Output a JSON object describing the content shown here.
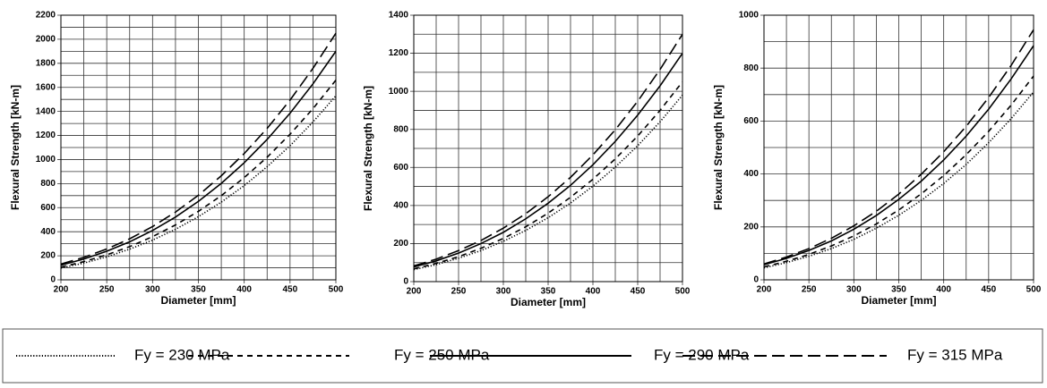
{
  "chart_data": [
    {
      "type": "line",
      "xlabel": "Diameter [mm]",
      "ylabel": "Flexural Strength [kN-m]",
      "x": [
        200,
        225,
        250,
        275,
        300,
        325,
        350,
        375,
        400,
        425,
        450,
        475,
        500
      ],
      "xlim": [
        200,
        500
      ],
      "xticks": [
        200,
        250,
        300,
        350,
        400,
        450,
        500
      ],
      "xminor_ticks": [
        225,
        275,
        325,
        375,
        425,
        475
      ],
      "ylim": [
        0,
        2200
      ],
      "yticks": [
        0,
        200,
        400,
        600,
        800,
        1000,
        1200,
        1400,
        1600,
        1800,
        2000,
        2200
      ],
      "yminor_ticks": [
        100,
        300,
        500,
        700,
        900,
        1100,
        1300,
        1500,
        1700,
        1900,
        2100
      ],
      "grid": true,
      "series": [
        {
          "name": "Fy = 230 MPa",
          "color": "#000",
          "dash": "dotted",
          "values": [
            98,
            139,
            191,
            255,
            330,
            420,
            525,
            646,
            783,
            940,
            1115,
            1312,
            1530
          ]
        },
        {
          "name": "Fy = 250 MPa",
          "color": "#000",
          "dash": "dashed",
          "values": [
            106,
            151,
            208,
            276,
            359,
            456,
            569,
            700,
            850,
            1019,
            1210,
            1423,
            1660
          ]
        },
        {
          "name": "Fy = 290 MPa",
          "color": "#000",
          "dash": "solid",
          "values": [
            122,
            173,
            238,
            316,
            410,
            522,
            652,
            802,
            973,
            1167,
            1385,
            1629,
            1900
          ]
        },
        {
          "name": "Fy = 315 MPa",
          "color": "#000",
          "dash": "longdash",
          "values": [
            131,
            187,
            256,
            341,
            443,
            563,
            703,
            865,
            1050,
            1259,
            1494,
            1758,
            2050
          ]
        }
      ]
    },
    {
      "type": "line",
      "xlabel": "Diameter [mm]",
      "ylabel": "Flexural Strength [kN-m]",
      "x": [
        200,
        225,
        250,
        275,
        300,
        325,
        350,
        375,
        400,
        425,
        450,
        475,
        500
      ],
      "xlim": [
        200,
        500
      ],
      "xticks": [
        200,
        250,
        300,
        350,
        400,
        450,
        500
      ],
      "xminor_ticks": [
        225,
        275,
        325,
        375,
        425,
        475
      ],
      "ylim": [
        0,
        1400
      ],
      "yticks": [
        0,
        200,
        400,
        600,
        800,
        1000,
        1200,
        1400
      ],
      "yminor_ticks": [
        100,
        300,
        500,
        700,
        900,
        1100,
        1300
      ],
      "grid": true,
      "series": [
        {
          "name": "Fy = 230 MPa",
          "color": "#000",
          "dash": "dotted",
          "values": [
            63,
            89,
            123,
            163,
            212,
            269,
            336,
            413,
            502,
            602,
            714,
            840,
            980
          ]
        },
        {
          "name": "Fy = 250 MPa",
          "color": "#000",
          "dash": "dashed",
          "values": [
            67,
            96,
            131,
            175,
            227,
            288,
            360,
            443,
            538,
            645,
            765,
            900,
            1050
          ]
        },
        {
          "name": "Fy = 290 MPa",
          "color": "#000",
          "dash": "solid",
          "values": [
            77,
            109,
            150,
            200,
            259,
            330,
            412,
            506,
            614,
            737,
            875,
            1029,
            1200
          ]
        },
        {
          "name": "Fy = 315 MPa",
          "color": "#000",
          "dash": "longdash",
          "values": [
            83,
            118,
            163,
            216,
            281,
            357,
            446,
            548,
            666,
            798,
            948,
            1115,
            1300
          ]
        }
      ]
    },
    {
      "type": "line",
      "xlabel": "Diameter [mm]",
      "ylabel": "Flexural Strength [kN-m]",
      "x": [
        200,
        225,
        250,
        275,
        300,
        325,
        350,
        375,
        400,
        425,
        450,
        475,
        500
      ],
      "xlim": [
        200,
        500
      ],
      "xticks": [
        200,
        250,
        300,
        350,
        400,
        450,
        500
      ],
      "xminor_ticks": [
        225,
        275,
        325,
        375,
        425,
        475
      ],
      "ylim": [
        0,
        1000
      ],
      "yticks": [
        0,
        200,
        400,
        600,
        800,
        1000
      ],
      "yminor_ticks": [
        100,
        300,
        500,
        700,
        900
      ],
      "grid": true,
      "series": [
        {
          "name": "Fy = 230 MPa",
          "color": "#000",
          "dash": "dotted",
          "values": [
            45,
            65,
            89,
            118,
            153,
            195,
            244,
            300,
            364,
            436,
            518,
            609,
            710
          ]
        },
        {
          "name": "Fy = 250 MPa",
          "color": "#000",
          "dash": "dashed",
          "values": [
            49,
            70,
            96,
            128,
            166,
            211,
            264,
            325,
            394,
            473,
            561,
            660,
            770
          ]
        },
        {
          "name": "Fy = 290 MPa",
          "color": "#000",
          "dash": "solid",
          "values": [
            57,
            81,
            111,
            147,
            191,
            243,
            304,
            373,
            453,
            543,
            645,
            759,
            885
          ]
        },
        {
          "name": "Fy = 315 MPa",
          "color": "#000",
          "dash": "longdash",
          "values": [
            60,
            86,
            118,
            157,
            204,
            259,
            324,
            399,
            484,
            580,
            689,
            810,
            945
          ]
        }
      ]
    }
  ]
}
